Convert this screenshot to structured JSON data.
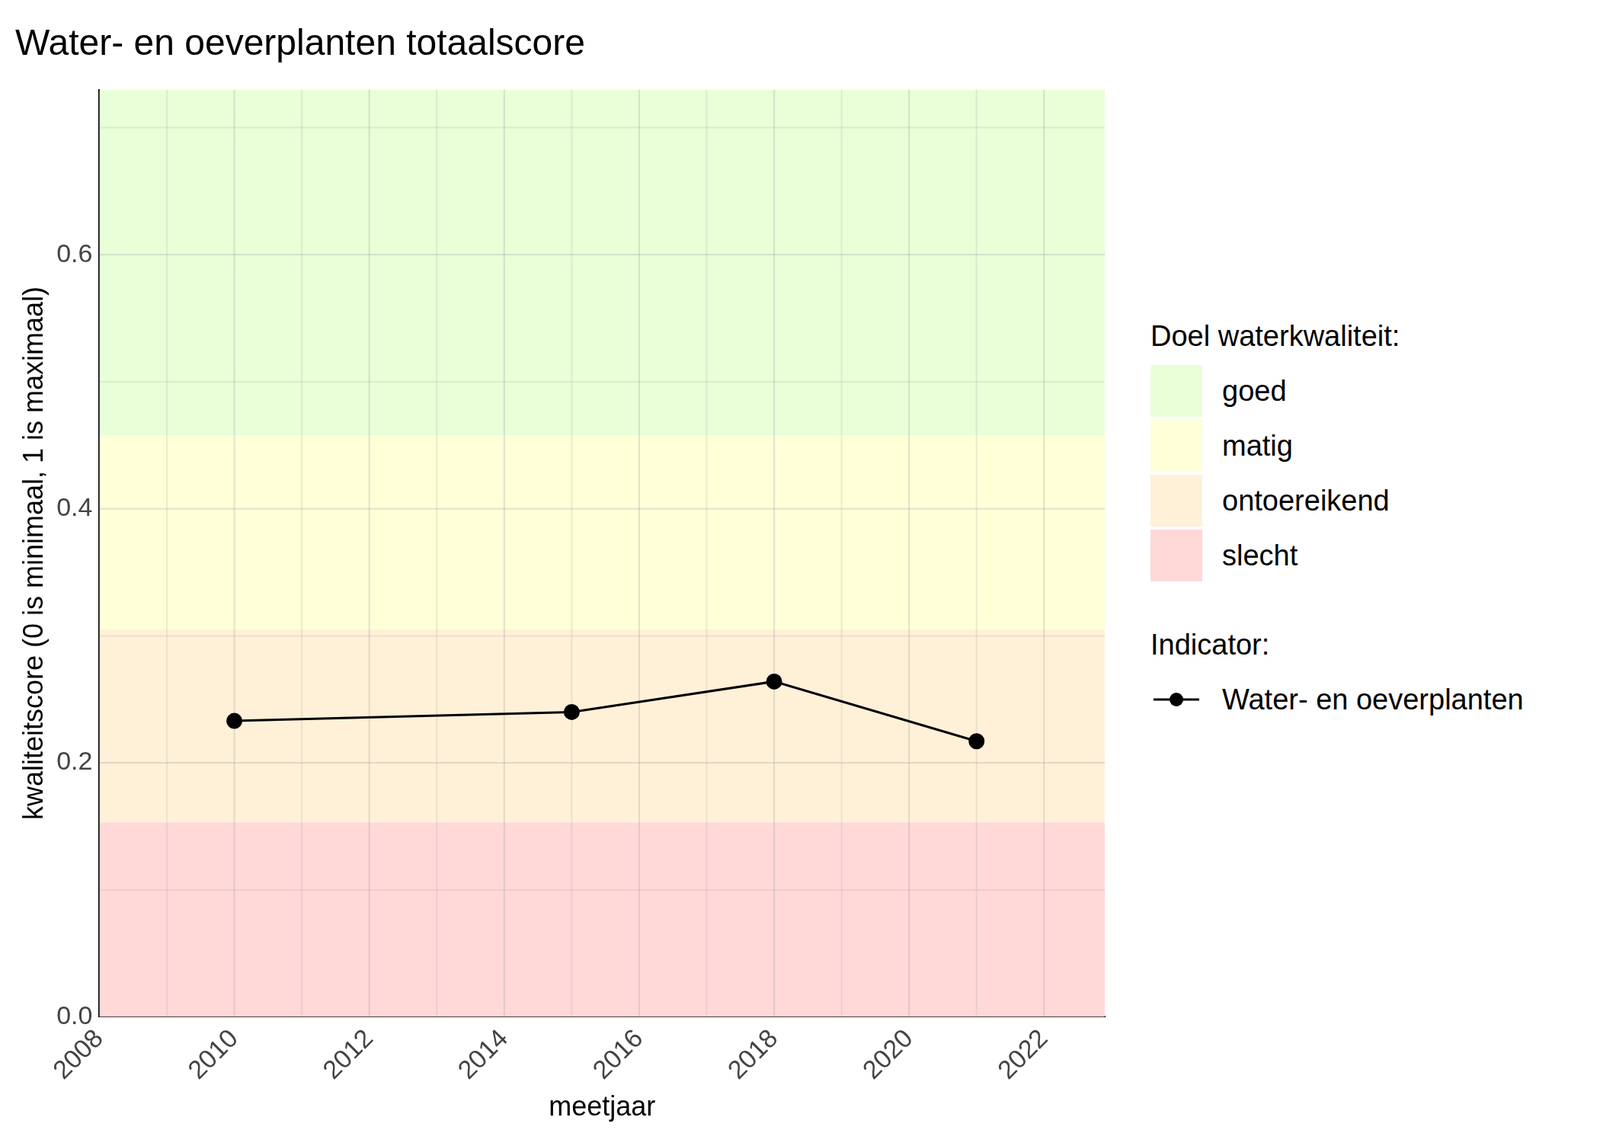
{
  "chart_data": {
    "type": "line",
    "title": "Water- en oeverplanten totaalscore",
    "x_label": "meetjaar",
    "y_label": "kwaliteitscore (0 is minimaal, 1 is maximaal)",
    "x": [
      2010,
      2015,
      2018,
      2021
    ],
    "series": [
      {
        "name": "Water- en oeverplanten",
        "color": "#000000",
        "marker": "circle",
        "line_style": "solid",
        "values": [
          0.233,
          0.24,
          0.264,
          0.217
        ]
      }
    ],
    "xlim": [
      2008,
      2022.9
    ],
    "xticks": [
      2008,
      2010,
      2012,
      2014,
      2016,
      2018,
      2020,
      2022
    ],
    "ylim": [
      0,
      0.73
    ],
    "yticks": [
      {
        "value": 0,
        "label": "0.0"
      },
      0.2,
      0.4,
      0.6
    ],
    "grid": true,
    "legend": "right",
    "bands_title": "Doel waterkwaliteit:",
    "bands": [
      {
        "name": "goed",
        "color": "#e8ffd8",
        "from": 0.458,
        "to": 0.73
      },
      {
        "name": "matig",
        "color": "#ffffd8",
        "from": 0.305,
        "to": 0.458
      },
      {
        "name": "ontoereikend",
        "color": "#fff1d8",
        "from": 0.153,
        "to": 0.305
      },
      {
        "name": "slecht",
        "color": "#ffd8d8",
        "from": 0,
        "to": 0.153
      }
    ],
    "series_title": "Indicator:"
  }
}
